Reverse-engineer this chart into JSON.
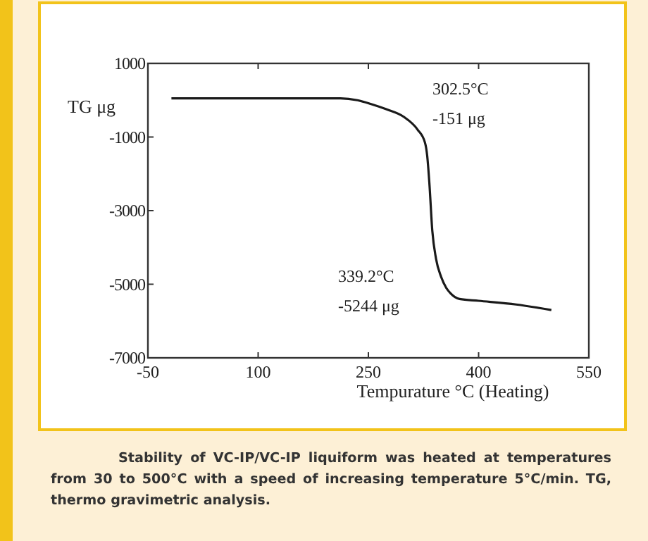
{
  "chart_data": {
    "type": "line",
    "xlabel": "Tempurature °C (Heating)",
    "ylabel": "TG μg",
    "xlim": [
      -50,
      550
    ],
    "xticks": [
      -50,
      100,
      250,
      400,
      550
    ],
    "ylim": [
      -7000,
      1000
    ],
    "yticks": [
      1000,
      -1000,
      -3000,
      -5000,
      -7000
    ],
    "grid": false,
    "marker": "none",
    "line_style": "solid",
    "series": [
      {
        "color": "#1a1a1a",
        "x": [
          -18,
          50,
          150,
          212,
          235,
          253,
          275,
          298,
          317,
          327,
          330,
          333,
          337,
          342,
          349,
          356,
          362,
          374,
          400,
          451,
          499
        ],
        "values": [
          50,
          50,
          50,
          50,
          0,
          -100,
          -250,
          -450,
          -800,
          -1150,
          -1500,
          -2250,
          -3550,
          -4300,
          -4800,
          -5100,
          -5250,
          -5400,
          -5450,
          -5550,
          -5700
        ]
      }
    ],
    "annotations": [
      "302.5°C\n-151 μg",
      "339.2°C\n-5244 μg",
      "Stability of VC-IP/VC-IP liquiform was heated at temperatures from 30 to 500°C with a speed of increasing temperature 5°C/min. TG, thermo gravimetric analysis."
    ]
  }
}
